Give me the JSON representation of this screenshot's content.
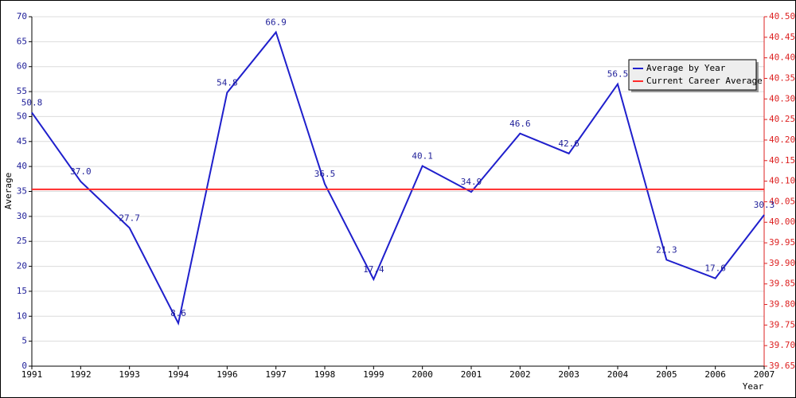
{
  "chart_data": {
    "type": "line",
    "x_label": "Year",
    "y_label": "Average",
    "categories": [
      "1991",
      "1992",
      "1993",
      "1994",
      "1996",
      "1997",
      "1998",
      "1999",
      "2000",
      "2001",
      "2002",
      "2003",
      "2004",
      "2005",
      "2006",
      "2007"
    ],
    "series": [
      {
        "name": "Average by Year",
        "color": "#1f1fcc",
        "values": [
          50.8,
          37.0,
          27.7,
          8.6,
          54.8,
          66.9,
          36.5,
          17.4,
          40.1,
          34.9,
          46.6,
          42.6,
          56.5,
          21.3,
          17.6,
          30.3
        ],
        "value_labels": [
          "50.8",
          "37.0",
          "27.7",
          "8.6",
          "54.8",
          "66.9",
          "36.5",
          "17.4",
          "40.1",
          "34.9",
          "46.6",
          "42.6",
          "56.5",
          "21.3",
          "17.6",
          "30.3"
        ]
      },
      {
        "name": "Current Career Average",
        "color": "#ff2a2a",
        "axis": "y2",
        "values": [
          40.08,
          40.08,
          40.08,
          40.08,
          40.08,
          40.08,
          40.08,
          40.08,
          40.08,
          40.08,
          40.08,
          40.08,
          40.08,
          40.08,
          40.08,
          40.08
        ]
      }
    ],
    "ylim": [
      0,
      70
    ],
    "yticks": [
      0,
      5,
      10,
      15,
      20,
      25,
      30,
      35,
      40,
      45,
      50,
      55,
      60,
      65,
      70
    ],
    "y2lim": [
      39.65,
      40.5
    ],
    "y2ticks": [
      39.65,
      {
        "value": 39.7,
        "label": "39.70"
      },
      39.75,
      {
        "value": 39.8,
        "label": "39.80"
      },
      39.85,
      {
        "value": 39.9,
        "label": "39.90"
      },
      39.95,
      {
        "value": 40.0,
        "label": "40.00"
      },
      40.05,
      {
        "value": 40.1,
        "label": "40.10"
      },
      40.15,
      {
        "value": 40.2,
        "label": "40.20"
      },
      40.25,
      {
        "value": 40.3,
        "label": "40.30"
      },
      40.35,
      {
        "value": 40.4,
        "label": "40.40"
      },
      40.45,
      {
        "value": 40.5,
        "label": "40.50"
      }
    ],
    "grid": true,
    "legend": "upper right",
    "y_tick_color": "#1f1f99",
    "y2_tick_color": "#dd2222"
  }
}
